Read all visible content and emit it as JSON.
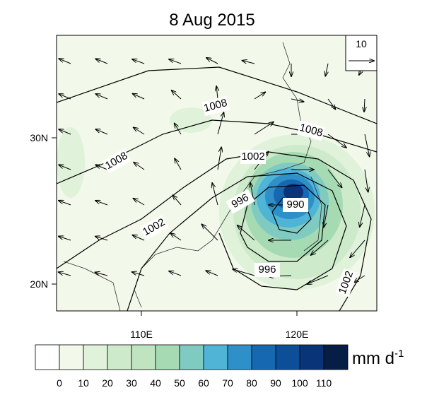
{
  "title": "8 Aug 2015",
  "x_axis": {
    "ticks": [
      "110E",
      "120E"
    ]
  },
  "y_axis": {
    "ticks": [
      "30N",
      "20N"
    ]
  },
  "reference_vector": "10",
  "contour_labels": [
    "1008",
    "1008",
    "1008",
    "1002",
    "1002",
    "1002",
    "996",
    "996",
    "990"
  ],
  "colorbar": {
    "labels": [
      "0",
      "10",
      "20",
      "30",
      "40",
      "50",
      "60",
      "70",
      "80",
      "90",
      "100",
      "110"
    ],
    "colors": [
      "#ffffff",
      "#f2f9ea",
      "#e0f2d9",
      "#cdeacb",
      "#bfe4bf",
      "#a5dab2",
      "#7fcbc2",
      "#4fb4d6",
      "#2f8fc8",
      "#1669b0",
      "#0c4f98",
      "#0a3478",
      "#061d45"
    ],
    "unit": "mm d",
    "unit_exponent": "-1"
  }
}
